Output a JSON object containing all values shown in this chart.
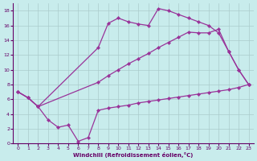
{
  "xlabel": "Windchill (Refroidissement éolien,°C)",
  "bg_color": "#c8ecec",
  "line_color": "#993399",
  "grid_color": "#aacccc",
  "xlim": [
    -0.5,
    23.5
  ],
  "ylim": [
    0,
    19
  ],
  "xticks": [
    0,
    1,
    2,
    3,
    4,
    5,
    6,
    7,
    8,
    9,
    10,
    11,
    12,
    13,
    14,
    15,
    16,
    17,
    18,
    19,
    20,
    21,
    22,
    23
  ],
  "yticks": [
    0,
    2,
    4,
    6,
    8,
    10,
    12,
    14,
    16,
    18
  ],
  "series": [
    {
      "x": [
        0,
        1,
        2,
        8,
        9,
        10,
        11,
        12,
        13,
        14,
        15,
        16,
        17,
        18,
        19,
        20,
        21,
        22,
        23
      ],
      "y": [
        7,
        6.2,
        5,
        13,
        16.3,
        17,
        16.5,
        16.2,
        16.0,
        18.3,
        18.0,
        17.5,
        17.0,
        16.5,
        16.0,
        15.0,
        12.5,
        10.0,
        8.0
      ]
    },
    {
      "x": [
        0,
        1,
        2,
        8,
        9,
        10,
        11,
        12,
        13,
        14,
        15,
        16,
        17,
        18,
        19,
        20,
        21,
        22,
        23
      ],
      "y": [
        7,
        6.2,
        5,
        8.3,
        9.2,
        10.0,
        10.8,
        11.5,
        12.2,
        13.0,
        13.7,
        14.4,
        15.1,
        15.0,
        15.0,
        15.5,
        12.5,
        10.0,
        8.0
      ]
    },
    {
      "x": [
        0,
        1,
        2,
        3,
        4,
        5,
        6,
        7,
        8,
        9,
        10,
        11,
        12,
        13,
        14,
        15,
        16,
        17,
        18,
        19,
        20,
        21,
        22,
        23
      ],
      "y": [
        7,
        6.2,
        5,
        3.2,
        2.2,
        2.5,
        0.3,
        0.8,
        4.5,
        4.8,
        5.0,
        5.2,
        5.5,
        5.7,
        5.9,
        6.1,
        6.3,
        6.5,
        6.7,
        6.9,
        7.1,
        7.3,
        7.6,
        8.0
      ]
    }
  ]
}
